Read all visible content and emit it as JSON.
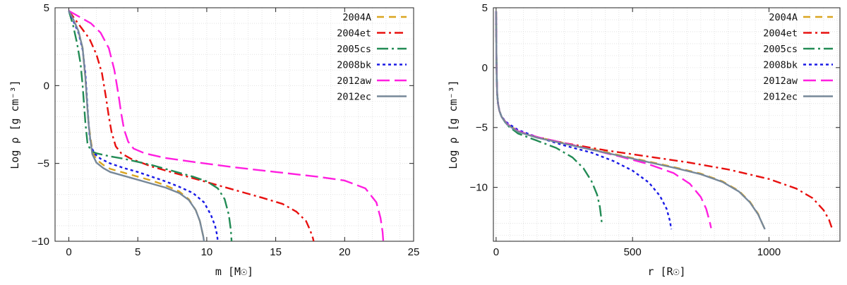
{
  "chart_data": [
    {
      "type": "line",
      "xlabel": "m [M☉]",
      "ylabel": "Log ρ [g cm⁻³]",
      "xlim": [
        -1,
        25
      ],
      "ylim": [
        -10,
        5
      ],
      "xticks": [
        0,
        5,
        10,
        15,
        20,
        25
      ],
      "yticks": [
        -10,
        -5,
        0,
        5
      ],
      "xtick_labels": [
        "0",
        "5",
        "10",
        "15",
        "20",
        "25"
      ],
      "ytick_labels": [
        "−10",
        "−5",
        "0",
        "5"
      ],
      "legend_position": "top-right",
      "series": [
        {
          "name": "2004A",
          "color": "#daa520",
          "dash": "dash-medium",
          "x": [
            0,
            0.3,
            0.7,
            1.0,
            1.2,
            1.35,
            1.45,
            1.55,
            1.7,
            2.0,
            2.5,
            3,
            4,
            5,
            6,
            7,
            8,
            8.7,
            9.2,
            9.5,
            9.65,
            9.75,
            9.8
          ],
          "y": [
            4.8,
            4.3,
            3.5,
            2.4,
            0.5,
            -1.5,
            -2.6,
            -3.2,
            -4.2,
            -4.75,
            -5.1,
            -5.35,
            -5.6,
            -5.85,
            -6.1,
            -6.4,
            -6.8,
            -7.3,
            -8.0,
            -8.7,
            -9.3,
            -9.7,
            -10
          ]
        },
        {
          "name": "2004et",
          "color": "#e8100f",
          "dash": "dash-dot",
          "x": [
            0,
            0.5,
            1.0,
            1.5,
            2.0,
            2.4,
            2.7,
            2.9,
            3.1,
            3.4,
            3.8,
            4.5,
            6,
            8,
            10,
            12,
            14,
            15.5,
            16.5,
            17.2,
            17.5,
            17.7,
            17.75
          ],
          "y": [
            4.8,
            4.2,
            3.6,
            3.0,
            2.0,
            0.8,
            -0.8,
            -2.0,
            -3.0,
            -3.9,
            -4.35,
            -4.7,
            -5.2,
            -5.7,
            -6.2,
            -6.7,
            -7.2,
            -7.6,
            -8.1,
            -8.7,
            -9.3,
            -9.8,
            -10
          ]
        },
        {
          "name": "2005cs",
          "color": "#228b55",
          "dash": "dash-dot-long",
          "x": [
            0,
            0.3,
            0.6,
            0.85,
            1.0,
            1.1,
            1.2,
            1.35,
            1.6,
            2.0,
            3,
            4,
            5,
            6,
            7,
            8,
            9,
            10,
            10.8,
            11.3,
            11.6,
            11.75,
            11.8
          ],
          "y": [
            4.8,
            3.9,
            2.7,
            1.4,
            0.0,
            -1.2,
            -2.4,
            -3.7,
            -4.2,
            -4.35,
            -4.55,
            -4.7,
            -4.9,
            -5.1,
            -5.35,
            -5.6,
            -5.85,
            -6.15,
            -6.6,
            -7.3,
            -8.3,
            -9.3,
            -10
          ]
        },
        {
          "name": "2008bk",
          "color": "#1a1ae6",
          "dash": "dotted",
          "x": [
            0,
            0.3,
            0.7,
            1.0,
            1.2,
            1.3,
            1.4,
            1.5,
            1.65,
            1.9,
            2.3,
            3,
            4,
            5,
            6,
            7,
            8,
            9,
            9.8,
            10.3,
            10.6,
            10.75,
            10.8
          ],
          "y": [
            4.8,
            4.2,
            3.4,
            2.3,
            0.8,
            -0.6,
            -2.0,
            -3.2,
            -4.0,
            -4.4,
            -4.7,
            -5.0,
            -5.3,
            -5.55,
            -5.85,
            -6.15,
            -6.5,
            -6.9,
            -7.5,
            -8.3,
            -9.0,
            -9.6,
            -10
          ]
        },
        {
          "name": "2012aw",
          "color": "#ff1fe0",
          "dash": "dash-long",
          "x": [
            0,
            0.8,
            1.6,
            2.3,
            2.9,
            3.3,
            3.6,
            3.8,
            4.0,
            4.3,
            4.7,
            5.5,
            7,
            9,
            12,
            15,
            18,
            20,
            21.5,
            22.3,
            22.6,
            22.75,
            22.8
          ],
          "y": [
            4.8,
            4.4,
            4.0,
            3.4,
            2.4,
            1.0,
            -0.6,
            -1.8,
            -2.8,
            -3.6,
            -4.05,
            -4.35,
            -4.65,
            -4.9,
            -5.25,
            -5.55,
            -5.85,
            -6.1,
            -6.6,
            -7.5,
            -8.5,
            -9.4,
            -10
          ]
        },
        {
          "name": "2012ec",
          "color": "#778899",
          "dash": "solid",
          "x": [
            0,
            0.3,
            0.7,
            1.0,
            1.2,
            1.35,
            1.45,
            1.55,
            1.7,
            2.0,
            2.5,
            3,
            4,
            5,
            6,
            7,
            8,
            8.7,
            9.2,
            9.5,
            9.65,
            9.75,
            9.8
          ],
          "y": [
            4.8,
            4.3,
            3.5,
            2.4,
            0.5,
            -1.5,
            -2.6,
            -3.4,
            -4.4,
            -4.95,
            -5.3,
            -5.55,
            -5.8,
            -6.05,
            -6.3,
            -6.55,
            -6.9,
            -7.35,
            -8.0,
            -8.7,
            -9.3,
            -9.7,
            -10
          ]
        }
      ]
    },
    {
      "type": "line",
      "xlabel": "r [R☉]",
      "ylabel": "Log ρ [g cm⁻³]",
      "xlim": [
        -10,
        1260
      ],
      "ylim": [
        -14.5,
        5
      ],
      "xticks": [
        0,
        500,
        1000
      ],
      "yticks": [
        -10,
        -5,
        0,
        5
      ],
      "xtick_labels": [
        "0",
        "500",
        "1000"
      ],
      "ytick_labels": [
        "−10",
        "−5",
        "0",
        "5"
      ],
      "legend_position": "top-right",
      "series": [
        {
          "name": "2004A",
          "color": "#daa520",
          "dash": "dash-medium",
          "x": [
            0,
            1,
            2,
            4,
            7,
            12,
            20,
            40,
            80,
            150,
            250,
            350,
            450,
            550,
            650,
            750,
            830,
            890,
            930,
            960,
            975,
            985
          ],
          "y": [
            4.7,
            1.5,
            -0.5,
            -2.2,
            -3.0,
            -3.6,
            -4.1,
            -4.7,
            -5.3,
            -5.8,
            -6.3,
            -6.8,
            -7.3,
            -7.8,
            -8.3,
            -8.85,
            -9.5,
            -10.3,
            -11.2,
            -12.2,
            -13.0,
            -13.5
          ]
        },
        {
          "name": "2004et",
          "color": "#e8100f",
          "dash": "dash-dot",
          "x": [
            0,
            1,
            2,
            4,
            7,
            12,
            20,
            40,
            80,
            150,
            250,
            400,
            550,
            700,
            850,
            1000,
            1100,
            1160,
            1200,
            1220,
            1232
          ],
          "y": [
            4.7,
            1.5,
            -0.5,
            -2.2,
            -3.0,
            -3.6,
            -4.1,
            -4.7,
            -5.3,
            -5.8,
            -6.3,
            -6.9,
            -7.4,
            -7.9,
            -8.5,
            -9.3,
            -10.1,
            -10.9,
            -11.9,
            -12.7,
            -13.5
          ]
        },
        {
          "name": "2005cs",
          "color": "#228b55",
          "dash": "dash-dot-long",
          "x": [
            0,
            1,
            2,
            4,
            7,
            12,
            20,
            40,
            80,
            150,
            220,
            280,
            320,
            350,
            370,
            380,
            385,
            388
          ],
          "y": [
            4.7,
            1.5,
            -0.5,
            -2.2,
            -3.0,
            -3.6,
            -4.1,
            -4.8,
            -5.5,
            -6.1,
            -6.7,
            -7.5,
            -8.4,
            -9.5,
            -10.6,
            -11.6,
            -12.5,
            -13.1
          ]
        },
        {
          "name": "2008bk",
          "color": "#1a1ae6",
          "dash": "dotted",
          "x": [
            0,
            1,
            2,
            4,
            7,
            12,
            20,
            40,
            80,
            150,
            250,
            350,
            430,
            500,
            560,
            600,
            625,
            637,
            642
          ],
          "y": [
            4.7,
            1.5,
            -0.5,
            -2.2,
            -3.0,
            -3.6,
            -4.1,
            -4.6,
            -5.2,
            -5.8,
            -6.5,
            -7.1,
            -7.8,
            -8.6,
            -9.6,
            -10.7,
            -11.8,
            -12.8,
            -13.5
          ]
        },
        {
          "name": "2012aw",
          "color": "#ff1fe0",
          "dash": "dash-long",
          "x": [
            0,
            1,
            2,
            4,
            7,
            12,
            20,
            40,
            80,
            150,
            250,
            350,
            450,
            550,
            650,
            710,
            750,
            770,
            782,
            788
          ],
          "y": [
            4.7,
            1.5,
            -0.5,
            -2.2,
            -3.0,
            -3.6,
            -4.1,
            -4.7,
            -5.3,
            -5.8,
            -6.3,
            -6.85,
            -7.4,
            -8.0,
            -8.8,
            -9.7,
            -10.8,
            -11.8,
            -12.8,
            -13.4
          ]
        },
        {
          "name": "2012ec",
          "color": "#778899",
          "dash": "solid",
          "x": [
            0,
            1,
            2,
            4,
            7,
            12,
            20,
            40,
            80,
            150,
            250,
            350,
            450,
            550,
            650,
            750,
            830,
            890,
            930,
            960,
            975,
            985
          ],
          "y": [
            4.7,
            1.5,
            -0.5,
            -2.2,
            -3.0,
            -3.6,
            -4.1,
            -4.75,
            -5.35,
            -5.85,
            -6.35,
            -6.85,
            -7.35,
            -7.85,
            -8.35,
            -8.9,
            -9.55,
            -10.35,
            -11.25,
            -12.25,
            -13.0,
            -13.5
          ]
        }
      ]
    }
  ]
}
